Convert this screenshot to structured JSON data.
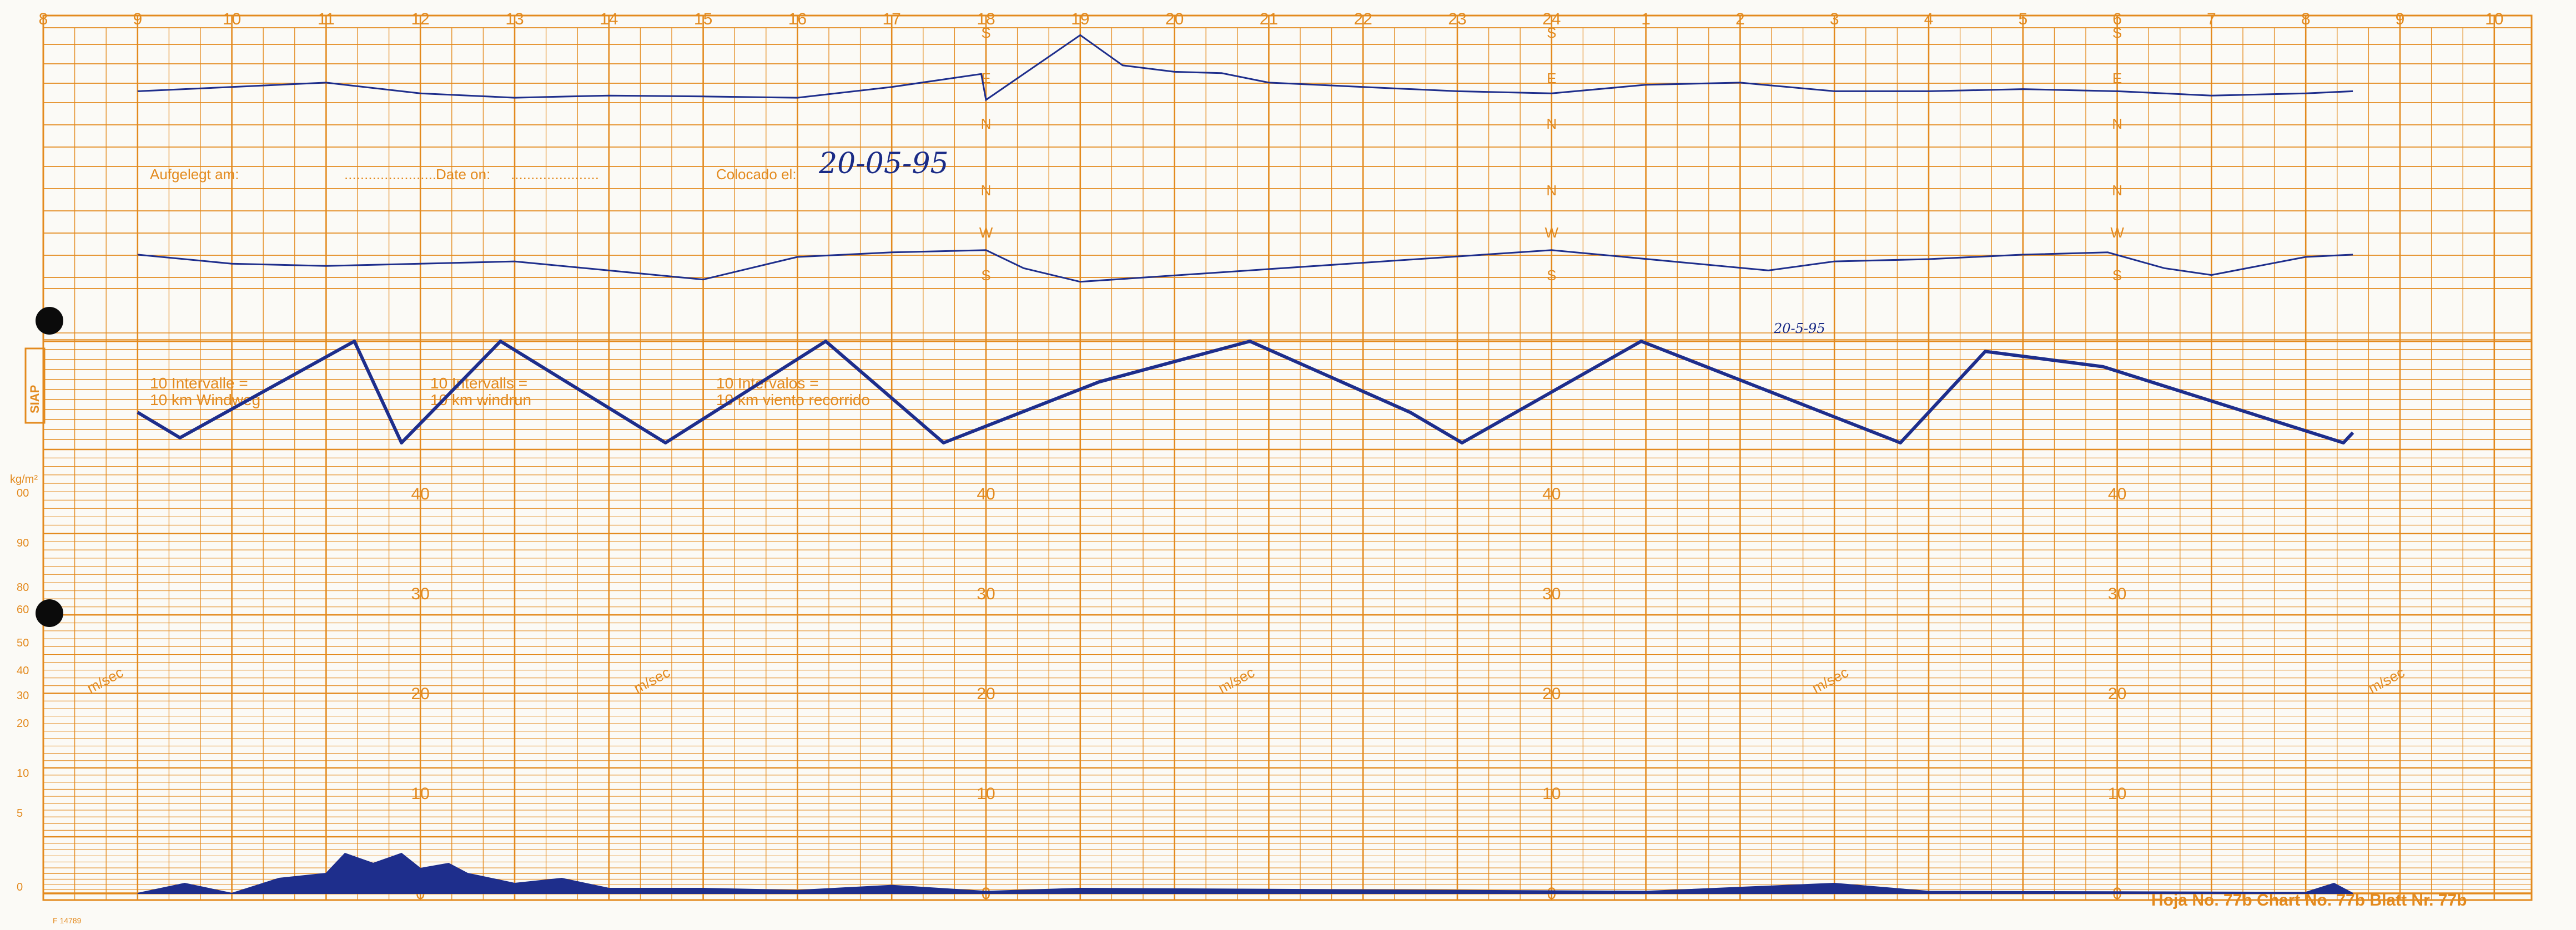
{
  "chart_data": {
    "type": "line",
    "hour_ticks": [
      "8",
      "9",
      "10",
      "11",
      "12",
      "13",
      "14",
      "15",
      "16",
      "17",
      "18",
      "19",
      "20",
      "21",
      "22",
      "23",
      "24",
      "1",
      "2",
      "3",
      "4",
      "5",
      "6",
      "7",
      "8",
      "9",
      "10"
    ],
    "direction_labels": {
      "upper": [
        "S",
        "E",
        "N"
      ],
      "lower": [
        "N",
        "W",
        "S"
      ]
    },
    "windrun_notes": [
      [
        "10 Intervalle =",
        "10 km Windweg"
      ],
      [
        "10 Intervalls =",
        "10 km windrun"
      ],
      [
        "10 Intervalos =",
        "10 km viento recorrido"
      ]
    ],
    "placed_labels": [
      "Aufgelegt am:",
      "Date on:",
      "Colocado el:"
    ],
    "handwritten_date": "20-05-95",
    "handwritten_date_small": "20-5-95",
    "speed_unit": "m/sec",
    "speed_axis_ticks": [
      40,
      30,
      20,
      10,
      0
    ],
    "left_scale_label": "kg/m²",
    "left_scale_ticks": [
      "00",
      "90",
      "80",
      "60",
      "50",
      "40",
      "30",
      "20",
      "10",
      "5",
      "0"
    ],
    "side_logo_text": "SIAP",
    "footer_code": "F 14789",
    "sheet_number": "Hoja No. 77b  Chart No. 77b  Blatt Nr. 77b",
    "windrun_trace": {
      "x_hours": [
        9.0,
        9.45,
        11.3,
        11.8,
        12.85,
        14.6,
        16.3,
        17.55,
        19.2,
        20.8,
        22.5,
        23.05,
        24.95,
        27.7,
        28.6,
        29.85,
        32.4,
        32.5
      ],
      "level": [
        0.3,
        0.05,
        1.0,
        0.0,
        1.0,
        0.0,
        1.0,
        0.0,
        0.6,
        1.0,
        0.3,
        0.0,
        1.0,
        0.0,
        0.9,
        0.75,
        0.0,
        0.1
      ]
    },
    "direction_trace_upper": {
      "x_hours": [
        9.0,
        10.0,
        11.0,
        12.0,
        13.0,
        14.0,
        15.0,
        16.0,
        17.0,
        17.95,
        18.0,
        19.0,
        19.45,
        20.0,
        20.5,
        21.0,
        22.0,
        23.0,
        24.0,
        25.0,
        26.0,
        27.0,
        28.0,
        29.0,
        30.0,
        31.0,
        32.0,
        32.5
      ],
      "direction_deg": [
        160,
        150,
        140,
        165,
        175,
        170,
        172,
        175,
        150,
        120,
        180,
        30,
        100,
        115,
        118,
        140,
        150,
        160,
        165,
        145,
        140,
        160,
        160,
        155,
        160,
        170,
        165,
        160
      ]
    },
    "direction_trace_lower": {
      "x_hours": [
        9.0,
        10.0,
        11.0,
        12.0,
        13.0,
        14.0,
        15.0,
        16.0,
        17.0,
        18.0,
        18.4,
        19.0,
        24.0,
        26.3,
        27.0,
        28.0,
        29.0,
        29.9,
        30.5,
        31.0,
        32.0,
        32.5
      ],
      "direction_deg": [
        195,
        215,
        220,
        215,
        210,
        230,
        250,
        200,
        190,
        185,
        225,
        255,
        185,
        230,
        210,
        205,
        195,
        190,
        225,
        240,
        200,
        195
      ]
    },
    "speed_trace": {
      "x_hours": [
        9.0,
        9.5,
        10.0,
        10.5,
        11.0,
        11.2,
        11.5,
        11.8,
        12.0,
        12.3,
        12.5,
        13.0,
        13.5,
        14.0,
        15.0,
        16.0,
        17.0,
        18.0,
        19.0,
        25.0,
        27.0,
        28.0,
        32.0,
        32.3,
        32.5
      ],
      "speed_ms": [
        0,
        1,
        0,
        1.5,
        2,
        4,
        3,
        4,
        2.5,
        3,
        2,
        1,
        1.5,
        0.5,
        0.5,
        0.3,
        0.8,
        0.2,
        0.5,
        0.2,
        1,
        0.2,
        0.1,
        1,
        0
      ]
    }
  }
}
